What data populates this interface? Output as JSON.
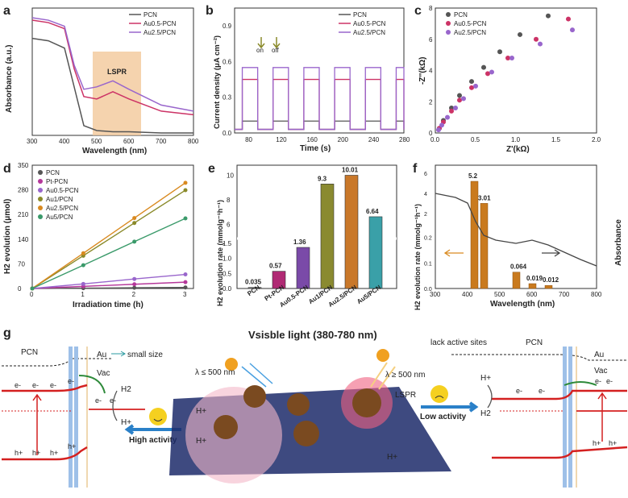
{
  "colors": {
    "pcn": "#555555",
    "au05": "#cc3366",
    "au25": "#9966cc",
    "pt": "#b5379a",
    "au1": "#8a8a2a",
    "au25o": "#d98a20",
    "au5": "#3a9a6a",
    "lspr": "#f2c89a",
    "bar_pcn": "#777777",
    "bar_pt": "#b02a74",
    "bar_au25_pcn": "#7a4aa8",
    "bar_au1": "#8a8a30",
    "bar_au25": "#c9782a",
    "bar_au5": "#3aa0a8",
    "bar_f": "#c97a1e",
    "red": "#d42020",
    "green": "#2e8a3a",
    "blue": "#2a80c8"
  },
  "panels": {
    "a": {
      "letter": "a",
      "ylabel": "Absorbance (a.u.)",
      "xlabel": "Wavelength (nm)",
      "xticks": [
        "300",
        "400",
        "500",
        "600",
        "700",
        "800"
      ],
      "lspr": "LSPR",
      "legend": [
        "PCN",
        "Au0.5-PCN",
        "Au2.5/PCN"
      ]
    },
    "b": {
      "letter": "b",
      "ylabel": "Current density (μA cm⁻²)",
      "xlabel": "Time (s)",
      "xticks": [
        "80",
        "120",
        "160",
        "200",
        "240",
        "280"
      ],
      "yticks": [
        "0.0",
        "0.3",
        "0.6",
        "0.9"
      ],
      "on": "on",
      "off": "off",
      "legend": [
        "PCN",
        "Au0.5-PCN",
        "Au2.5/PCN"
      ]
    },
    "c": {
      "letter": "c",
      "ylabel": "-Z''(kΩ)",
      "xlabel": "Z'(kΩ)",
      "xticks": [
        "0.0",
        "0.5",
        "1.0",
        "1.5",
        "2.0"
      ],
      "yticks": [
        "0",
        "2",
        "4",
        "6",
        "8"
      ],
      "legend": [
        "PCN",
        "Au0.5-PCN",
        "Au2.5/PCN"
      ]
    },
    "d": {
      "letter": "d",
      "ylabel": "H2 evolution (μmol)",
      "xlabel": "Irradiation time (h)",
      "xticks": [
        "0",
        "1",
        "2",
        "3"
      ],
      "yticks": [
        "0",
        "70",
        "140",
        "210",
        "280",
        "350"
      ],
      "legend": [
        "PCN",
        "Pt-PCN",
        "Au0.5-PCN",
        "Au1/PCN",
        "Au2.5/PCN",
        "Au5/PCN"
      ]
    },
    "e": {
      "letter": "e",
      "ylabel": "H2 evolution rate (mmolg⁻¹h⁻¹)",
      "yticks_low": [
        "0.0",
        "0.5",
        "1.0",
        "1.5"
      ],
      "yticks_high": [
        "6",
        "8",
        "10"
      ],
      "bars": [
        {
          "label": "PCN",
          "value": "0.035"
        },
        {
          "label": "Pt-PCN",
          "value": "0.57"
        },
        {
          "label": "Au0.5-PCN",
          "value": "1.36"
        },
        {
          "label": "Au1/PCN",
          "value": "9.3"
        },
        {
          "label": "Au2.5/PCN",
          "value": "10.01"
        },
        {
          "label": "Au5/PCN",
          "value": "6.64"
        }
      ]
    },
    "f": {
      "letter": "f",
      "ylabel_left": "H2 evolution rate (mmolg⁻¹h⁻¹)",
      "ylabel_right": "Absorbance",
      "xlabel": "Wavelength (nm)",
      "xticks": [
        "300",
        "400",
        "500",
        "600",
        "700",
        "800"
      ],
      "yticks_left": [
        "0.0",
        "0.1",
        "0.2",
        "2",
        "4",
        "6"
      ],
      "bars": [
        "5.2",
        "3.01",
        "0.064",
        "0.019",
        "0.012"
      ]
    },
    "g": {
      "letter": "g",
      "title": "Vsisble light (380-780 nm)",
      "pcn": "PCN",
      "au": "Au",
      "vac": "Vac",
      "small": "small size",
      "lack": "lack active sites",
      "lambda_low": "λ ≤ 500 nm",
      "lambda_high": "λ ≥ 500 nm",
      "lspr": "LSPR",
      "high": "High activity",
      "low": "Low activity",
      "h2": "H2",
      "hplus": "H+",
      "eminus": "e-",
      "hole": "h+"
    }
  },
  "chart_data": [
    {
      "panel": "a",
      "type": "line",
      "title": "",
      "xlabel": "Wavelength (nm)",
      "ylabel": "Absorbance (a.u.)",
      "xlim": [
        300,
        800
      ],
      "series": [
        {
          "name": "PCN",
          "x": [
            300,
            350,
            400,
            430,
            460,
            500,
            550,
            600,
            700,
            800
          ],
          "y": [
            0.8,
            0.78,
            0.72,
            0.4,
            0.08,
            0.04,
            0.03,
            0.03,
            0.02,
            0.02
          ]
        },
        {
          "name": "Au0.5-PCN",
          "x": [
            300,
            350,
            400,
            430,
            460,
            500,
            550,
            600,
            700,
            800
          ],
          "y": [
            0.95,
            0.93,
            0.88,
            0.55,
            0.32,
            0.3,
            0.36,
            0.3,
            0.2,
            0.17
          ]
        },
        {
          "name": "Au2.5/PCN",
          "x": [
            300,
            350,
            400,
            430,
            460,
            500,
            550,
            600,
            700,
            800
          ],
          "y": [
            0.97,
            0.95,
            0.9,
            0.58,
            0.38,
            0.4,
            0.45,
            0.38,
            0.25,
            0.2
          ]
        }
      ],
      "annotation": "LSPR"
    },
    {
      "panel": "b",
      "type": "line",
      "xlabel": "Time (s)",
      "ylabel": "Current density (μA cm⁻²)",
      "xlim": [
        60,
        280
      ],
      "ylim": [
        0,
        1.05
      ],
      "series": [
        {
          "name": "PCN",
          "on_value": 0.1
        },
        {
          "name": "Au0.5-PCN",
          "on_value": 0.45
        },
        {
          "name": "Au2.5/PCN",
          "on_value": 0.55
        }
      ]
    },
    {
      "panel": "c",
      "type": "scatter",
      "xlabel": "Z'(kΩ)",
      "ylabel": "-Z''(kΩ)",
      "xlim": [
        0,
        2
      ],
      "ylim": [
        0,
        8
      ],
      "series": [
        {
          "name": "PCN",
          "x": [
            0.05,
            0.1,
            0.2,
            0.3,
            0.45,
            0.6,
            0.8,
            1.05,
            1.4
          ],
          "y": [
            0.3,
            0.8,
            1.6,
            2.4,
            3.3,
            4.2,
            5.2,
            6.3,
            7.5
          ]
        },
        {
          "name": "Au0.5-PCN",
          "x": [
            0.05,
            0.1,
            0.2,
            0.3,
            0.45,
            0.65,
            0.9,
            1.25,
            1.65
          ],
          "y": [
            0.3,
            0.7,
            1.4,
            2.1,
            2.9,
            3.8,
            4.8,
            6.0,
            7.3
          ]
        },
        {
          "name": "Au2.5/PCN",
          "x": [
            0.04,
            0.08,
            0.15,
            0.25,
            0.35,
            0.5,
            0.7,
            0.95,
            1.3,
            1.7
          ],
          "y": [
            0.2,
            0.5,
            1.0,
            1.6,
            2.2,
            3.0,
            3.9,
            4.8,
            5.7,
            6.6
          ]
        }
      ]
    },
    {
      "panel": "d",
      "type": "line",
      "xlabel": "Irradiation time (h)",
      "ylabel": "H2 evolution (μmol)",
      "xlim": [
        0,
        3
      ],
      "ylim": [
        0,
        350
      ],
      "series": [
        {
          "name": "PCN",
          "x": [
            0,
            1,
            2,
            3
          ],
          "y": [
            0,
            1,
            2,
            3
          ]
        },
        {
          "name": "Pt-PCN",
          "x": [
            0,
            1,
            2,
            3
          ],
          "y": [
            0,
            6,
            12,
            18
          ]
        },
        {
          "name": "Au0.5-PCN",
          "x": [
            0,
            1,
            2,
            3
          ],
          "y": [
            0,
            13,
            27,
            40
          ]
        },
        {
          "name": "Au1/PCN",
          "x": [
            0,
            1,
            2,
            3
          ],
          "y": [
            0,
            93,
            186,
            279
          ]
        },
        {
          "name": "Au2.5/PCN",
          "x": [
            0,
            1,
            2,
            3
          ],
          "y": [
            0,
            100,
            200,
            300
          ]
        },
        {
          "name": "Au5/PCN",
          "x": [
            0,
            1,
            2,
            3
          ],
          "y": [
            0,
            66,
            133,
            199
          ]
        }
      ]
    },
    {
      "panel": "e",
      "type": "bar",
      "categories": [
        "PCN",
        "Pt-PCN",
        "Au0.5-PCN",
        "Au1/PCN",
        "Au2.5/PCN",
        "Au5/PCN"
      ],
      "values": [
        0.035,
        0.57,
        1.36,
        9.3,
        10.01,
        6.64
      ],
      "ylabel": "H2 evolution rate (mmolg⁻¹h⁻¹)"
    },
    {
      "panel": "f",
      "type": "bar",
      "x": [
        420,
        450,
        550,
        600,
        650
      ],
      "values": [
        5.2,
        3.01,
        0.064,
        0.019,
        0.012
      ],
      "xlabel": "Wavelength (nm)",
      "ylabel": "H2 evolution rate (mmolg⁻¹h⁻¹)"
    }
  ]
}
